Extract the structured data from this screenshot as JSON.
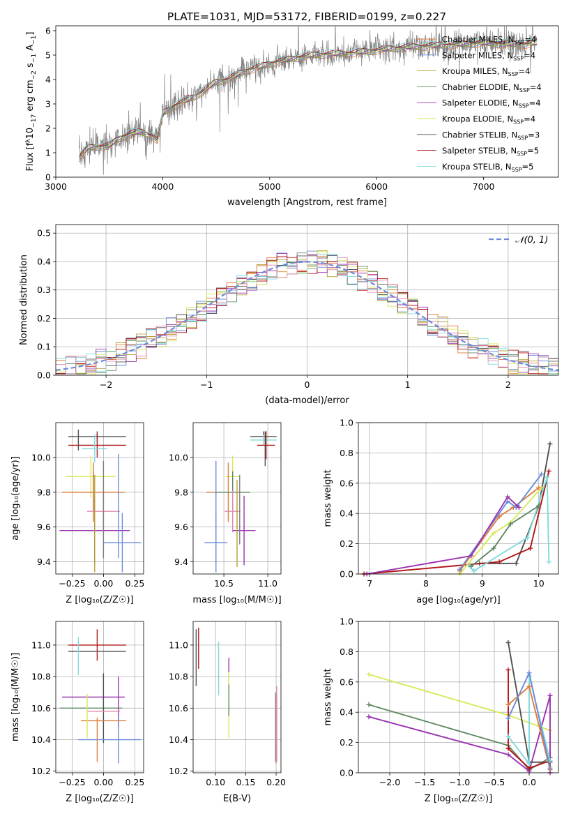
{
  "colors": {
    "grey": "#808080",
    "dark": "#505050",
    "orange": "#e07b39",
    "blue": "#6a8bd8",
    "sage": "#5e8a62",
    "purple": "#9a32b0",
    "yellow": "#d9e85a",
    "red": "#b01515",
    "cyan": "#7fd9dc",
    "pink": "#e08ab0",
    "gold": "#b5a030",
    "salmon": "#e8a070"
  },
  "chart_data": [
    {
      "id": "spectrum",
      "type": "line",
      "title": "PLATE=1031, MJD=53172, FIBERID=0199, z=0.227",
      "xlabel": "wavelength [Angstrom, rest frame]",
      "ylabel_parts": {
        "pre": "Flux [f",
        "sub1": "λ",
        "mid": "10",
        "sup1": "−17",
        "mid2": " erg cm",
        "sup2": "−2",
        "mid3": " s",
        "sup3": "−1",
        "mid4": " A",
        "sup4": "−1",
        "post": "]"
      },
      "xlim": [
        3000,
        7700
      ],
      "ylim": [
        0,
        6.2
      ],
      "xticks": [
        3000,
        4000,
        5000,
        6000,
        7000
      ],
      "yticks": [
        0,
        1,
        2,
        3,
        4,
        5,
        6
      ],
      "continuum": {
        "x": [
          3220,
          3300,
          3400,
          3500,
          3600,
          3700,
          3800,
          3900,
          3950,
          4000,
          4100,
          4200,
          4300,
          4400,
          4500,
          4600,
          4700,
          4800,
          4900,
          5000,
          5200,
          5400,
          5600,
          5800,
          6000,
          6200,
          6400,
          6600,
          6800,
          7000,
          7200,
          7400,
          7500
        ],
        "y": [
          0.8,
          1.2,
          1.25,
          1.3,
          1.6,
          1.8,
          1.85,
          1.7,
          1.5,
          2.6,
          2.9,
          3.1,
          3.3,
          3.6,
          3.9,
          4.0,
          4.2,
          4.4,
          4.5,
          4.65,
          4.85,
          5.0,
          5.05,
          5.1,
          5.2,
          5.3,
          5.35,
          5.4,
          5.45,
          5.5,
          5.45,
          5.45,
          5.5
        ]
      },
      "legend_position": "upper right",
      "legend": [
        {
          "label": "Chabrier MILES",
          "n": "4",
          "color": "#e07b39"
        },
        {
          "label": "Salpeter MILES",
          "n": "4",
          "color": "#6a8bd8"
        },
        {
          "label": "Kroupa MILES",
          "n": "4",
          "color": "#b5a030"
        },
        {
          "label": "Chabrier ELODIE",
          "n": "4",
          "color": "#5e8a62"
        },
        {
          "label": "Salpeter ELODIE",
          "n": "4",
          "color": "#9a32b0"
        },
        {
          "label": "Kroupa ELODIE",
          "n": "4",
          "color": "#d9e85a"
        },
        {
          "label": "Chabrier STELIB",
          "n": "3",
          "color": "#505050"
        },
        {
          "label": "Salpeter STELIB",
          "n": "5",
          "color": "#b01515"
        },
        {
          "label": "Kroupa STELIB",
          "n": "5",
          "color": "#7fd9dc"
        }
      ]
    },
    {
      "id": "residuals",
      "type": "histogram",
      "xlabel": "(data-model)/error",
      "ylabel": "Normed distribution",
      "xlim": [
        -2.5,
        2.5
      ],
      "ylim": [
        0,
        0.53
      ],
      "xticks": [
        -2,
        -1,
        0,
        1,
        2
      ],
      "yticks": [
        0,
        0.1,
        0.2,
        0.3,
        0.4,
        0.5
      ],
      "xtick_labels": [
        "−2",
        "−1",
        "0",
        "1",
        "2"
      ],
      "yticks_labels": [
        "0.0",
        "0.1",
        "0.2",
        "0.3",
        "0.4",
        "0.5"
      ],
      "bin_width": 0.1,
      "legend_label": "𝒩(0, 1)",
      "legend_position": "upper right",
      "gaussian": {
        "mu": 0,
        "sigma": 1
      }
    },
    {
      "id": "age_vs_Z",
      "type": "errorbar",
      "xlabel": "Z [log₁₀(Z/Z☉)]",
      "ylabel": "age  [log₁₀(age/yr)]",
      "xlim": [
        -0.38,
        0.32
      ],
      "ylim": [
        9.33,
        10.2
      ],
      "xticks": [
        -0.25,
        0.0,
        0.25
      ],
      "xtick_labels": [
        "−0.25",
        "0.00",
        "0.25"
      ],
      "yticks": [
        9.4,
        9.6,
        9.8,
        10.0
      ],
      "ytick_labels": [
        "9.4",
        "9.6",
        "9.8",
        "10.0"
      ],
      "points": [
        {
          "x": -0.05,
          "xerr": 0.23,
          "y": 10.12,
          "yerr": 0.03,
          "c": "#505050"
        },
        {
          "x": -0.05,
          "xerr": 0.23,
          "y": 10.07,
          "yerr": 0.07,
          "c": "#b01515"
        },
        {
          "x": -0.07,
          "xerr": 0.1,
          "y": 10.05,
          "yerr": 0.08,
          "c": "#7fd9dc"
        },
        {
          "x": -0.1,
          "xerr": 0.2,
          "y": 9.89,
          "yerr": 0.12,
          "c": "#d9e85a"
        },
        {
          "x": -0.08,
          "xerr": 0.25,
          "y": 9.8,
          "yerr": 0.12,
          "c": "#5e8a62"
        },
        {
          "x": -0.08,
          "xerr": 0.25,
          "y": 9.8,
          "yerr": 0.17,
          "c": "#e07b39"
        },
        {
          "x": 0.0,
          "xerr": 0.13,
          "y": 9.69,
          "yerr": 0.12,
          "c": "#e08ab0"
        },
        {
          "x": -0.07,
          "xerr": 0.28,
          "y": 9.58,
          "yerr": 0.2,
          "c": "#9a32b0"
        },
        {
          "x": 0.15,
          "xerr": 0.15,
          "y": 9.51,
          "yerr": 0.17,
          "c": "#6a8bd8"
        },
        {
          "x": 0.12,
          "xerr": 0.0,
          "y": 9.72,
          "yerr": 0.3,
          "c": "#6a8bd8"
        },
        {
          "x": -0.07,
          "xerr": 0.0,
          "y": 9.62,
          "yerr": 0.28,
          "c": "#b5a030"
        },
        {
          "x": 0.0,
          "xerr": 0.0,
          "y": 9.7,
          "yerr": 0.28,
          "c": "#808080"
        },
        {
          "x": -0.2,
          "xerr": 0.0,
          "y": 10.1,
          "yerr": 0.06,
          "c": "#505050"
        }
      ]
    },
    {
      "id": "age_vs_mass",
      "type": "errorbar",
      "xlabel": "mass [log₁₀(M/M☉)]",
      "xlim": [
        10.15,
        11.15
      ],
      "ylim": [
        9.33,
        10.2
      ],
      "xticks": [
        10.5,
        11.0
      ],
      "xtick_labels": [
        "10.5",
        "11.0"
      ],
      "yticks": [
        9.4,
        9.6,
        9.8,
        10.0
      ],
      "ytick_labels": [
        "9.4",
        "9.6",
        "9.8",
        "10.0"
      ],
      "points": [
        {
          "x": 10.95,
          "xerr": 0.15,
          "y": 10.12,
          "yerr": 0.03,
          "c": "#505050"
        },
        {
          "x": 10.95,
          "xerr": 0.15,
          "y": 10.1,
          "yerr": 0.03,
          "c": "#7fd9dc"
        },
        {
          "x": 10.98,
          "xerr": 0.1,
          "y": 10.07,
          "yerr": 0.08,
          "c": "#b01515"
        },
        {
          "x": 10.97,
          "xerr": 0.0,
          "y": 10.05,
          "yerr": 0.1,
          "c": "#505050"
        },
        {
          "x": 10.6,
          "xerr": 0.08,
          "y": 9.89,
          "yerr": 0.12,
          "c": "#d9e85a"
        },
        {
          "x": 10.55,
          "xerr": 0.25,
          "y": 9.8,
          "yerr": 0.17,
          "c": "#e07b39"
        },
        {
          "x": 10.6,
          "xerr": 0.2,
          "y": 9.8,
          "yerr": 0.12,
          "c": "#5e8a62"
        },
        {
          "x": 10.6,
          "xerr": 0.09,
          "y": 9.69,
          "yerr": 0.12,
          "c": "#e08ab0"
        },
        {
          "x": 10.73,
          "xerr": 0.13,
          "y": 9.58,
          "yerr": 0.2,
          "c": "#9a32b0"
        },
        {
          "x": 10.41,
          "xerr": 0.13,
          "y": 9.51,
          "yerr": 0.17,
          "c": "#6a8bd8"
        },
        {
          "x": 10.41,
          "xerr": 0.0,
          "y": 9.68,
          "yerr": 0.3,
          "c": "#6a8bd8"
        },
        {
          "x": 10.68,
          "xerr": 0.0,
          "y": 9.7,
          "yerr": 0.2,
          "c": "#808080"
        },
        {
          "x": 10.65,
          "xerr": 0.0,
          "y": 9.62,
          "yerr": 0.25,
          "c": "#b5a030"
        }
      ]
    },
    {
      "id": "weight_vs_age",
      "type": "line",
      "xlabel": "age  [log₁₀(age/yr)]",
      "ylabel": "mass weight",
      "xlim": [
        6.8,
        10.35
      ],
      "ylim": [
        0,
        1.0
      ],
      "xticks": [
        7,
        8,
        9,
        10
      ],
      "xtick_labels": [
        "7",
        "8",
        "9",
        "10"
      ],
      "yticks": [
        0,
        0.2,
        0.4,
        0.6,
        0.8,
        1.0
      ],
      "ytick_labels": [
        "0.0",
        "0.2",
        "0.4",
        "0.6",
        "0.8",
        "1.0"
      ],
      "series": [
        {
          "c": "#505050",
          "x": [
            8.95,
            9.6,
            10.0,
            10.2
          ],
          "y": [
            0.07,
            0.07,
            0.45,
            0.86
          ]
        },
        {
          "c": "#b01515",
          "x": [
            6.9,
            9.3,
            9.85,
            10.18
          ],
          "y": [
            0.0,
            0.08,
            0.17,
            0.68
          ]
        },
        {
          "c": "#7fd9dc",
          "x": [
            8.75,
            8.85,
            9.8,
            10.15,
            10.18
          ],
          "y": [
            0.06,
            0.02,
            0.24,
            0.64,
            0.08
          ]
        },
        {
          "c": "#d9e85a",
          "x": [
            8.6,
            9.2,
            9.5,
            10.05
          ],
          "y": [
            0.0,
            0.27,
            0.34,
            0.57
          ]
        },
        {
          "c": "#5e8a62",
          "x": [
            8.8,
            9.2,
            9.5,
            10.0
          ],
          "y": [
            0.05,
            0.17,
            0.33,
            0.45
          ]
        },
        {
          "c": "#e07b39",
          "x": [
            8.6,
            9.3,
            9.55,
            10.0
          ],
          "y": [
            0.02,
            0.38,
            0.44,
            0.57
          ]
        },
        {
          "c": "#6a8bd8",
          "x": [
            8.6,
            9.45,
            9.6,
            10.05
          ],
          "y": [
            0.03,
            0.48,
            0.44,
            0.66
          ]
        },
        {
          "c": "#9a32b0",
          "x": [
            6.95,
            8.8,
            9.45,
            9.65
          ],
          "y": [
            0.0,
            0.12,
            0.51,
            0.44
          ]
        }
      ]
    },
    {
      "id": "mass_vs_Z",
      "type": "errorbar",
      "xlabel": "Z [log₁₀(Z/Z☉)]",
      "ylabel": "mass [log₁₀(M/M☉)]",
      "xlim": [
        -0.38,
        0.32
      ],
      "ylim": [
        10.19,
        11.15
      ],
      "xticks": [
        -0.25,
        0.0,
        0.25
      ],
      "xtick_labels": [
        "−0.25",
        "0.00",
        "0.25"
      ],
      "yticks": [
        10.2,
        10.4,
        10.6,
        10.8,
        11.0
      ],
      "ytick_labels": [
        "10.2",
        "10.4",
        "10.6",
        "10.8",
        "11.0"
      ],
      "points": [
        {
          "x": -0.05,
          "xerr": 0.23,
          "y": 11.0,
          "yerr": 0.1,
          "c": "#b01515"
        },
        {
          "x": -0.05,
          "xerr": 0.23,
          "y": 10.96,
          "yerr": 0.0,
          "c": "#505050"
        },
        {
          "x": -0.2,
          "xerr": 0.0,
          "y": 10.93,
          "yerr": 0.12,
          "c": "#7fd9dc"
        },
        {
          "x": -0.08,
          "xerr": 0.25,
          "y": 10.67,
          "yerr": 0.0,
          "c": "#9a32b0"
        },
        {
          "x": -0.1,
          "xerr": 0.25,
          "y": 10.6,
          "yerr": 0.0,
          "c": "#5e8a62"
        },
        {
          "x": 0.0,
          "xerr": 0.0,
          "y": 10.6,
          "yerr": 0.22,
          "c": "#505050"
        },
        {
          "x": 0.12,
          "xerr": 0.0,
          "y": 10.64,
          "yerr": 0.16,
          "c": "#9a32b0"
        },
        {
          "x": 0.0,
          "xerr": 0.13,
          "y": 10.58,
          "yerr": 0.0,
          "c": "#e08ab0"
        },
        {
          "x": 0.0,
          "xerr": 0.18,
          "y": 10.52,
          "yerr": 0.0,
          "c": "#e07b39"
        },
        {
          "x": -0.13,
          "xerr": 0.0,
          "y": 10.55,
          "yerr": 0.14,
          "c": "#d9e85a"
        },
        {
          "x": 0.05,
          "xerr": 0.25,
          "y": 10.4,
          "yerr": 0.0,
          "c": "#6a8bd8"
        },
        {
          "x": 0.12,
          "xerr": 0.0,
          "y": 10.4,
          "yerr": 0.15,
          "c": "#6a8bd8"
        },
        {
          "x": -0.05,
          "xerr": 0.0,
          "y": 10.4,
          "yerr": 0.14,
          "c": "#e07b39"
        }
      ]
    },
    {
      "id": "mass_vs_EBV",
      "type": "errorbar",
      "xlabel": "E(B-V)",
      "xlim": [
        0.063,
        0.208
      ],
      "ylim": [
        10.19,
        11.15
      ],
      "xticks": [
        0.1,
        0.15,
        0.2
      ],
      "xtick_labels": [
        "0.10",
        "0.15",
        "0.20"
      ],
      "yticks": [
        10.2,
        10.4,
        10.6,
        10.8,
        11.0
      ],
      "ytick_labels": [
        "10.2",
        "10.4",
        "10.6",
        "10.8",
        "11.0"
      ],
      "points": [
        {
          "x": 0.072,
          "y": 10.98,
          "yerr": 0.13,
          "c": "#b01515"
        },
        {
          "x": 0.068,
          "y": 10.92,
          "yerr": 0.18,
          "c": "#505050"
        },
        {
          "x": 0.105,
          "y": 10.85,
          "yerr": 0.17,
          "c": "#7fd9dc"
        },
        {
          "x": 0.122,
          "y": 10.83,
          "yerr": 0.09,
          "c": "#9a32b0"
        },
        {
          "x": 0.122,
          "y": 10.62,
          "yerr": 0.21,
          "c": "#d9e85a"
        },
        {
          "x": 0.122,
          "y": 10.65,
          "yerr": 0.1,
          "c": "#5e8a62"
        },
        {
          "x": 0.199,
          "y": 10.48,
          "yerr": 0.22,
          "c": "#6a8bd8"
        },
        {
          "x": 0.2,
          "y": 10.47,
          "yerr": 0.22,
          "c": "#e07b39"
        },
        {
          "x": 0.201,
          "y": 10.5,
          "yerr": 0.24,
          "c": "#e08ab0"
        }
      ]
    },
    {
      "id": "weight_vs_Z",
      "type": "line",
      "xlabel": "Z [log₁₀(Z/Z☉)]",
      "ylabel": "mass weight",
      "xlim": [
        -2.45,
        0.42
      ],
      "ylim": [
        0,
        1.0
      ],
      "xticks": [
        -2.0,
        -1.5,
        -1.0,
        -0.5,
        0.0
      ],
      "xtick_labels": [
        "−2.0",
        "−1.5",
        "−1.0",
        "−0.5",
        "0.0"
      ],
      "yticks": [
        0,
        0.2,
        0.4,
        0.6,
        0.8,
        1.0
      ],
      "ytick_labels": [
        "0.0",
        "0.2",
        "0.4",
        "0.6",
        "0.8",
        "1.0"
      ],
      "series": [
        {
          "c": "#d9e85a",
          "x": [
            -2.3,
            -0.3,
            0.3,
            0.3
          ],
          "y": [
            0.65,
            0.38,
            0.28,
            0.04
          ]
        },
        {
          "c": "#5e8a62",
          "x": [
            -2.3,
            -0.3,
            0.0,
            0.3
          ],
          "y": [
            0.45,
            0.18,
            0.02,
            0.1
          ]
        },
        {
          "c": "#9a32b0",
          "x": [
            -2.3,
            -0.3,
            0.0,
            0.3,
            0.3
          ],
          "y": [
            0.37,
            0.12,
            0.01,
            0.51,
            0.0
          ]
        },
        {
          "c": "#505050",
          "x": [
            -0.3,
            0.0,
            0.3
          ],
          "y": [
            0.86,
            0.07,
            0.07
          ]
        },
        {
          "c": "#b01515",
          "x": [
            -0.3,
            -0.3,
            0.0,
            0.3
          ],
          "y": [
            0.68,
            0.16,
            0.03,
            0.08
          ]
        },
        {
          "c": "#7fd9dc",
          "x": [
            -0.3,
            0.0,
            0.0,
            0.3
          ],
          "y": [
            0.24,
            0.06,
            0.64,
            0.08
          ]
        },
        {
          "c": "#e07b39",
          "x": [
            -0.3,
            0.0,
            0.3
          ],
          "y": [
            0.45,
            0.57,
            0.02
          ]
        },
        {
          "c": "#6a8bd8",
          "x": [
            -0.3,
            0.0,
            0.3
          ],
          "y": [
            0.36,
            0.66,
            0.03
          ]
        }
      ]
    }
  ]
}
